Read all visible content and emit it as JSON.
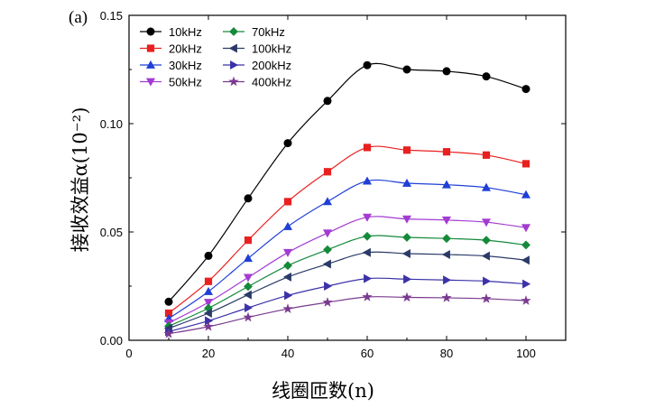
{
  "panel_label": "(a)",
  "chart_data": {
    "type": "line",
    "title": "",
    "xlabel": "线圈匝数(n)",
    "ylabel": "接收效益α(10⁻²)",
    "xlim": [
      0,
      110
    ],
    "ylim": [
      0,
      0.15
    ],
    "x_ticks": [
      "0",
      "20",
      "40",
      "60",
      "80",
      "100"
    ],
    "y_ticks": [
      "0.00",
      "0.05",
      "0.10",
      "0.15"
    ],
    "grid": false,
    "legend_position": "top-left",
    "x": [
      10,
      20,
      30,
      40,
      50,
      60,
      70,
      80,
      90,
      100
    ],
    "series": [
      {
        "name": "10kHz",
        "marker": "circle",
        "color": "#000000",
        "values": [
          0.0178,
          0.039,
          0.0655,
          0.091,
          0.1105,
          0.127,
          0.125,
          0.1242,
          0.1218,
          0.116
        ]
      },
      {
        "name": "20kHz",
        "marker": "square",
        "color": "#e8201f",
        "values": [
          0.0125,
          0.0272,
          0.0462,
          0.064,
          0.0778,
          0.089,
          0.0878,
          0.087,
          0.0855,
          0.0815
        ]
      },
      {
        "name": "30kHz",
        "marker": "triangle-up",
        "color": "#1f3fd6",
        "values": [
          0.01,
          0.0225,
          0.0378,
          0.0525,
          0.064,
          0.0735,
          0.0725,
          0.0718,
          0.0705,
          0.0672
        ]
      },
      {
        "name": "50kHz",
        "marker": "triangle-down",
        "color": "#a33bd1",
        "values": [
          0.008,
          0.0175,
          0.029,
          0.0405,
          0.0495,
          0.0568,
          0.056,
          0.0555,
          0.0545,
          0.052
        ]
      },
      {
        "name": "70kHz",
        "marker": "diamond",
        "color": "#148a3a",
        "values": [
          0.0065,
          0.0148,
          0.0248,
          0.0345,
          0.0418,
          0.048,
          0.0475,
          0.047,
          0.0462,
          0.044
        ]
      },
      {
        "name": "100kHz",
        "marker": "triangle-left",
        "color": "#2b3a68",
        "values": [
          0.0055,
          0.0125,
          0.021,
          0.0292,
          0.0352,
          0.0405,
          0.04,
          0.0396,
          0.0389,
          0.037
        ]
      },
      {
        "name": "200kHz",
        "marker": "triangle-right",
        "color": "#3b31a8",
        "values": [
          0.004,
          0.009,
          0.015,
          0.0207,
          0.025,
          0.0285,
          0.0282,
          0.0278,
          0.0273,
          0.026
        ]
      },
      {
        "name": "400kHz",
        "marker": "star",
        "color": "#7a3a8f",
        "values": [
          0.003,
          0.0063,
          0.0106,
          0.0145,
          0.0175,
          0.02,
          0.0198,
          0.0196,
          0.0192,
          0.0183
        ]
      }
    ]
  }
}
